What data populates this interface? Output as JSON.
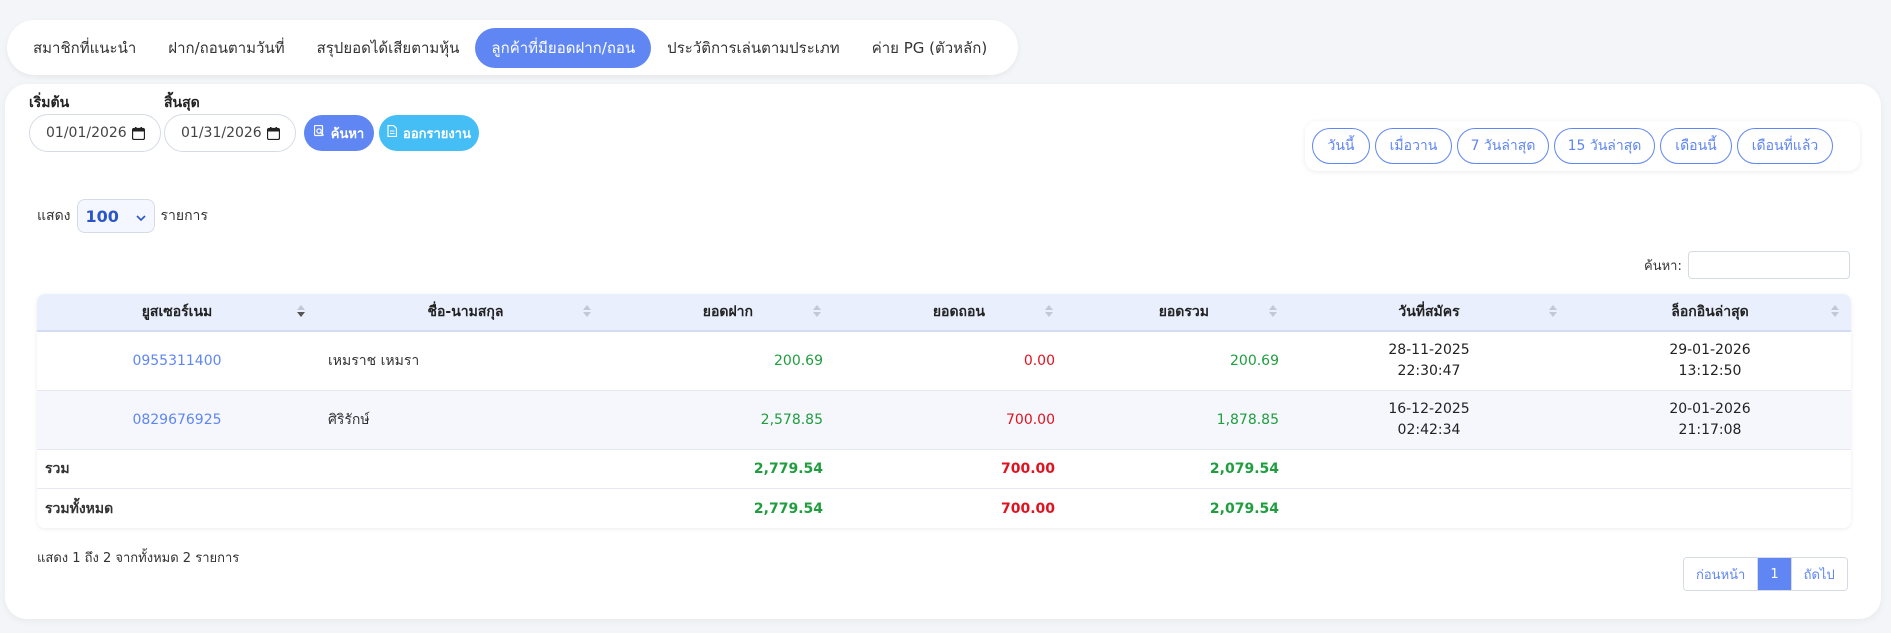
{
  "tabs": [
    {
      "label": "สมาชิกที่แนะนำ",
      "active": false
    },
    {
      "label": "ฝาก/ถอนตามวันที่",
      "active": false
    },
    {
      "label": "สรุปยอดได้เสียตามหุ้น",
      "active": false
    },
    {
      "label": "ลูกค้าที่มียอดฝาก/ถอน",
      "active": true
    },
    {
      "label": "ประวัติการเล่นตามประเภท",
      "active": false
    },
    {
      "label": "ค่าย PG (ตัวหลัก)",
      "active": false
    }
  ],
  "filter": {
    "start_label": "เริ่มต้น",
    "start_value": "01/01/2026",
    "end_label": "สิ้นสุด",
    "end_value": "01/31/2026",
    "search_button": "ค้นหา",
    "export_button": "ออกรายงาน"
  },
  "quick_ranges": [
    "วันนี้",
    "เมื่อวาน",
    "7 วันล่าสุด",
    "15 วันล่าสุด",
    "เดือนนี้",
    "เดือนที่แล้ว"
  ],
  "length": {
    "prefix": "แสดง",
    "value": "100",
    "suffix": "รายการ"
  },
  "search": {
    "label": "ค้นหา:",
    "value": ""
  },
  "table": {
    "headers": [
      "ยูสเซอร์เนม",
      "ชื่อ-นามสกุล",
      "ยอดฝาก",
      "ยอดถอน",
      "ยอดรวม",
      "วันที่สมัคร",
      "ล็อกอินล่าสุด"
    ],
    "rows": [
      {
        "username": "0955311400",
        "name": "เหมราช เหมรา",
        "deposit": "200.69",
        "withdraw": "0.00",
        "total": "200.69",
        "reg_date": "28-11-2025",
        "reg_time": "22:30:47",
        "login_date": "29-01-2026",
        "login_time": "13:12:50"
      },
      {
        "username": "0829676925",
        "name": "ศิริรักษ์",
        "deposit": "2,578.85",
        "withdraw": "700.00",
        "total": "1,878.85",
        "reg_date": "16-12-2025",
        "reg_time": "02:42:34",
        "login_date": "20-01-2026",
        "login_time": "21:17:08"
      }
    ],
    "sum": {
      "label": "รวม",
      "deposit": "2,779.54",
      "withdraw": "700.00",
      "total": "2,079.54"
    },
    "grand_total": {
      "label": "รวมทั้งหมด",
      "deposit": "2,779.54",
      "withdraw": "700.00",
      "total": "2,079.54"
    }
  },
  "footer": {
    "info": "แสดง 1 ถึง 2 จากทั้งหมด 2 รายการ"
  },
  "pagination": {
    "prev": "ก่อนหน้า",
    "current": "1",
    "next": "ถัดไป"
  },
  "colors": {
    "accent": "#5f86f2",
    "export": "#45bdf5",
    "positive": "#1f9d3f",
    "negative": "#e0121f"
  }
}
